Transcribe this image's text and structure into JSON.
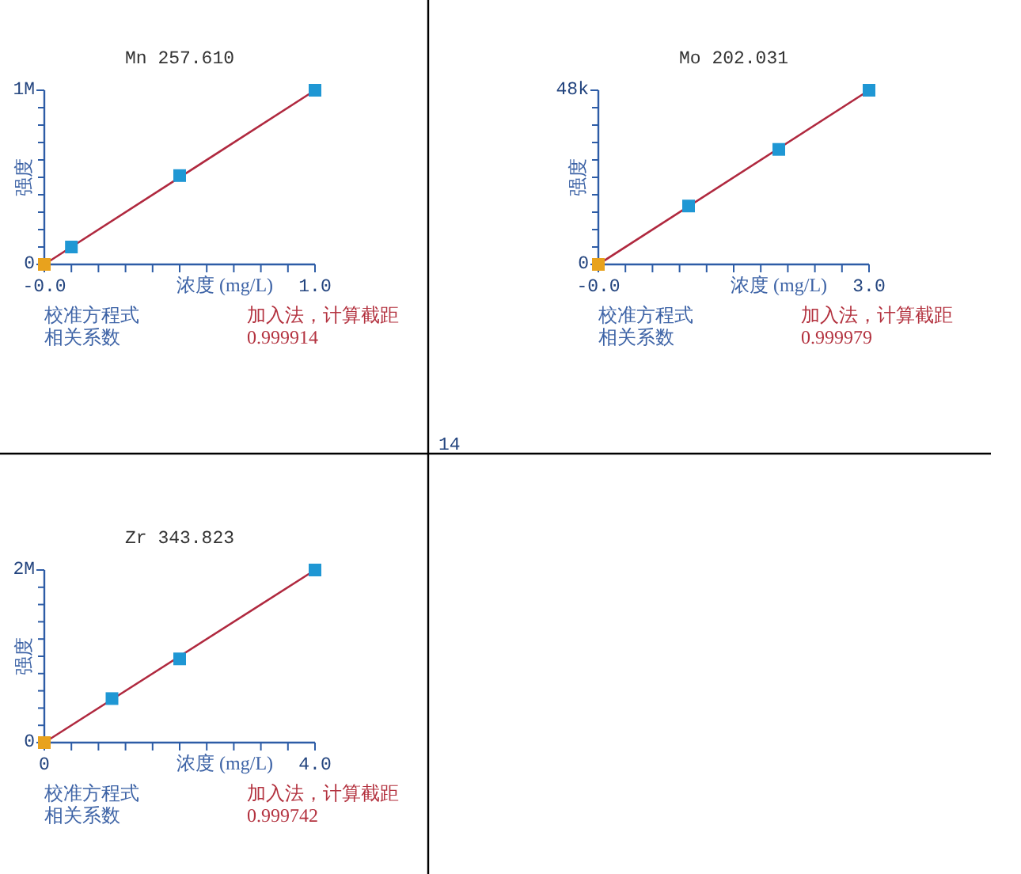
{
  "chart_data": [
    {
      "type": "scatter",
      "title": "Mn 257.610",
      "xlabel": "浓度 (mg/L)",
      "ylabel": "强度",
      "xlim": [
        0,
        1
      ],
      "ylim": [
        0,
        1000000
      ],
      "xticks": [
        {
          "value": 0,
          "label": "-0.0"
        },
        {
          "value": 0.1,
          "label": null
        },
        {
          "value": 0.2,
          "label": null
        },
        {
          "value": 0.3,
          "label": null
        },
        {
          "value": 0.4,
          "label": null
        },
        {
          "value": 0.5,
          "label": null
        },
        {
          "value": 0.6,
          "label": null
        },
        {
          "value": 0.7,
          "label": null
        },
        {
          "value": 0.8,
          "label": null
        },
        {
          "value": 0.9,
          "label": null
        },
        {
          "value": 1,
          "label": "1.0"
        }
      ],
      "yticks": [
        {
          "value": 0,
          "label": "0"
        },
        {
          "value": 100000,
          "label": null
        },
        {
          "value": 200000,
          "label": null
        },
        {
          "value": 300000,
          "label": null
        },
        {
          "value": 400000,
          "label": null
        },
        {
          "value": 500000,
          "label": null
        },
        {
          "value": 600000,
          "label": null
        },
        {
          "value": 700000,
          "label": null
        },
        {
          "value": 800000,
          "label": null
        },
        {
          "value": 900000,
          "label": null
        },
        {
          "value": 1000000,
          "label": "1M"
        }
      ],
      "series": [
        {
          "type": "line",
          "color": "#b0293f",
          "x": [
            0,
            1
          ],
          "values": [
            0,
            1000000
          ]
        },
        {
          "type": "scatter",
          "color": "#1f97d4",
          "marker": "square",
          "x": [
            0.1,
            0.5,
            1
          ],
          "values": [
            100000,
            510000,
            1000000
          ]
        },
        {
          "type": "scatter",
          "color": "#e8a21d",
          "marker": "square",
          "x": [
            0
          ],
          "values": [
            0
          ]
        }
      ],
      "annotations": [
        "校准方程式",
        "加入法，计算截距",
        "相关系数",
        "0.999914"
      ]
    },
    {
      "type": "scatter",
      "title": "Mo 202.031",
      "xlabel": "浓度 (mg/L)",
      "ylabel": "强度",
      "xlim": [
        0,
        3
      ],
      "ylim": [
        0,
        48000
      ],
      "xticks": [
        {
          "value": 0,
          "label": "-0.0"
        },
        {
          "value": 0.3,
          "label": null
        },
        {
          "value": 0.6,
          "label": null
        },
        {
          "value": 0.9,
          "label": null
        },
        {
          "value": 1.2,
          "label": null
        },
        {
          "value": 1.5,
          "label": null
        },
        {
          "value": 1.8,
          "label": null
        },
        {
          "value": 2.1,
          "label": null
        },
        {
          "value": 2.4,
          "label": null
        },
        {
          "value": 2.7,
          "label": null
        },
        {
          "value": 3,
          "label": "3.0"
        }
      ],
      "yticks": [
        {
          "value": 0,
          "label": "0"
        },
        {
          "value": 4800,
          "label": null
        },
        {
          "value": 9600,
          "label": null
        },
        {
          "value": 14400,
          "label": null
        },
        {
          "value": 19200,
          "label": null
        },
        {
          "value": 24000,
          "label": null
        },
        {
          "value": 28800,
          "label": null
        },
        {
          "value": 33600,
          "label": null
        },
        {
          "value": 38400,
          "label": null
        },
        {
          "value": 43200,
          "label": null
        },
        {
          "value": 48000,
          "label": "48k"
        }
      ],
      "series": [
        {
          "type": "line",
          "color": "#b0293f",
          "x": [
            0,
            3
          ],
          "values": [
            0,
            48000
          ]
        },
        {
          "type": "scatter",
          "color": "#1f97d4",
          "marker": "square",
          "x": [
            1,
            2,
            3
          ],
          "values": [
            16100,
            31700,
            48000
          ]
        },
        {
          "type": "scatter",
          "color": "#e8a21d",
          "marker": "square",
          "x": [
            0
          ],
          "values": [
            0
          ]
        }
      ],
      "annotations": [
        "校准方程式",
        "加入法，计算截距",
        "相关系数",
        "0.999979"
      ]
    },
    {
      "type": "scatter",
      "title": "Zr 343.823",
      "xlabel": "浓度 (mg/L)",
      "ylabel": "强度",
      "xlim": [
        0,
        4
      ],
      "ylim": [
        0,
        2000000
      ],
      "xticks": [
        {
          "value": 0,
          "label": "0"
        },
        {
          "value": 0.4,
          "label": null
        },
        {
          "value": 0.8,
          "label": null
        },
        {
          "value": 1.2,
          "label": null
        },
        {
          "value": 1.6,
          "label": null
        },
        {
          "value": 2,
          "label": null
        },
        {
          "value": 2.4,
          "label": null
        },
        {
          "value": 2.8,
          "label": null
        },
        {
          "value": 3.2,
          "label": null
        },
        {
          "value": 3.6,
          "label": null
        },
        {
          "value": 4,
          "label": "4.0"
        }
      ],
      "yticks": [
        {
          "value": 0,
          "label": "0"
        },
        {
          "value": 200000,
          "label": null
        },
        {
          "value": 400000,
          "label": null
        },
        {
          "value": 600000,
          "label": null
        },
        {
          "value": 800000,
          "label": null
        },
        {
          "value": 1000000,
          "label": null
        },
        {
          "value": 1200000,
          "label": null
        },
        {
          "value": 1400000,
          "label": null
        },
        {
          "value": 1600000,
          "label": null
        },
        {
          "value": 1800000,
          "label": null
        },
        {
          "value": 2000000,
          "label": "2M"
        }
      ],
      "series": [
        {
          "type": "line",
          "color": "#b0293f",
          "x": [
            0,
            4
          ],
          "values": [
            0,
            2000000
          ]
        },
        {
          "type": "scatter",
          "color": "#1f97d4",
          "marker": "square",
          "x": [
            1,
            2,
            4
          ],
          "values": [
            510000,
            970000,
            2000000
          ]
        },
        {
          "type": "scatter",
          "color": "#e8a21d",
          "marker": "square",
          "x": [
            0
          ],
          "values": [
            0
          ]
        }
      ],
      "annotations": [
        "校准方程式",
        "加入法，计算截距",
        "相关系数",
        "0.999742"
      ]
    },
    {
      "type": "other",
      "annotations": [
        "14"
      ]
    }
  ]
}
